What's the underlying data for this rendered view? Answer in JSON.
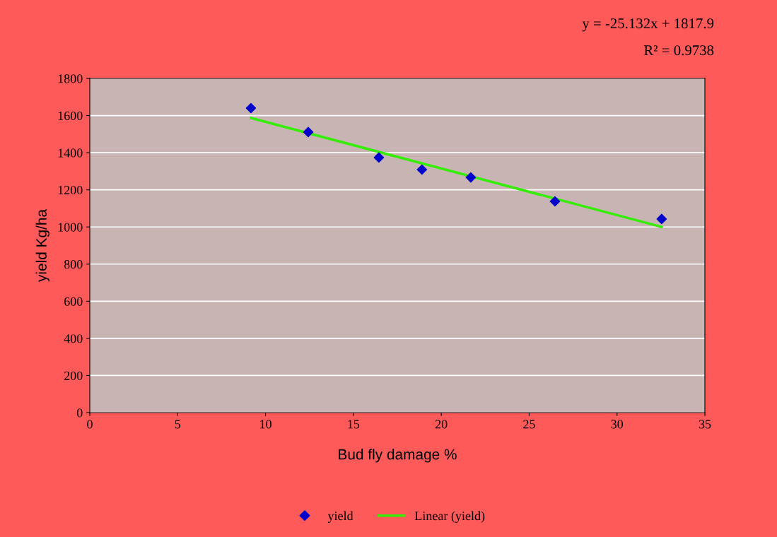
{
  "chart_data": {
    "type": "scatter",
    "xlabel": "Bud fly damage %",
    "ylabel": "yield Kg/ha",
    "annotations": [
      "y = -25.132x + 1817.9",
      "R² = 0.9738"
    ],
    "series": [
      {
        "name": "yield",
        "color": "#0000cc",
        "marker": "diamond",
        "x": [
          9.17,
          12.43,
          16.45,
          18.9,
          21.68,
          26.47,
          32.54
        ],
        "values": [
          1640,
          1511,
          1374,
          1309,
          1267,
          1138,
          1043
        ]
      },
      {
        "name": "Linear (yield)",
        "type": "line",
        "color": "#33ee00",
        "marker": "none",
        "line_style": "solid",
        "x": [
          9.17,
          32.54
        ],
        "values": [
          1587,
          1000
        ]
      }
    ],
    "xlim": [
      0,
      35
    ],
    "xticks": [
      0,
      5,
      10,
      15,
      20,
      25,
      30,
      35
    ],
    "ylim": [
      0,
      1800
    ],
    "yticks": [
      0,
      200,
      400,
      600,
      800,
      1000,
      1200,
      1400,
      1600,
      1800
    ],
    "grid": "y",
    "legend": "bottom"
  }
}
